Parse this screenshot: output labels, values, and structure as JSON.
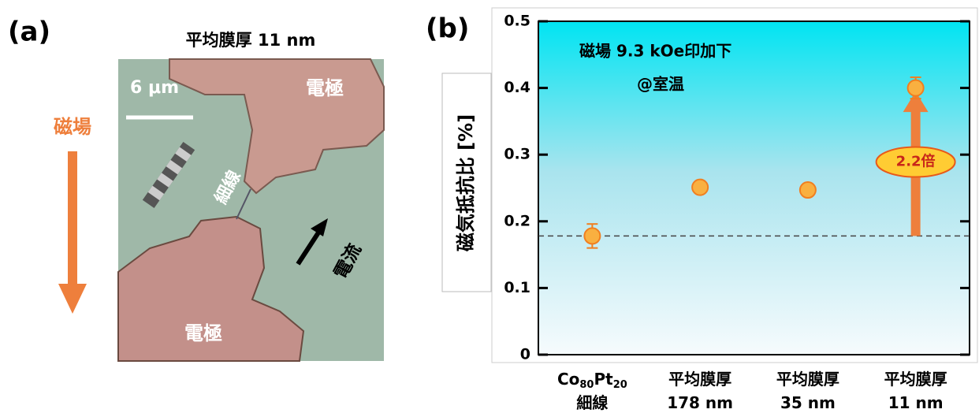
{
  "panel_a": {
    "label": "(a)",
    "title": "平均膜厚 11 nm",
    "scale_bar": "6 μm",
    "electrode_top": "電極",
    "electrode_bottom": "電極",
    "wire": "細線",
    "current": "電流",
    "field": "磁場"
  },
  "chart_data": {
    "type": "scatter",
    "panel_label": "(b)",
    "annotations": [
      "磁場 9.3 kOe印加下",
      "@室温"
    ],
    "ratio_label": "2.2倍",
    "ylabel": "磁気抵抗比 [%]",
    "categories": [
      "Co80Pt20\n細線",
      "平均膜厚\n178 nm",
      "平均膜厚\n35 nm",
      "平均膜厚\n11 nm"
    ],
    "values": [
      0.178,
      0.251,
      0.247,
      0.4
    ],
    "errors": [
      0.018,
      0.005,
      0.005,
      0.016
    ],
    "reference_line": 0.178,
    "color": "#f9b040",
    "edge_color": "#f07f20",
    "ylim": [
      0,
      0.5
    ],
    "yticks": [
      0,
      0.1,
      0.2,
      0.3,
      0.4,
      0.5
    ]
  }
}
